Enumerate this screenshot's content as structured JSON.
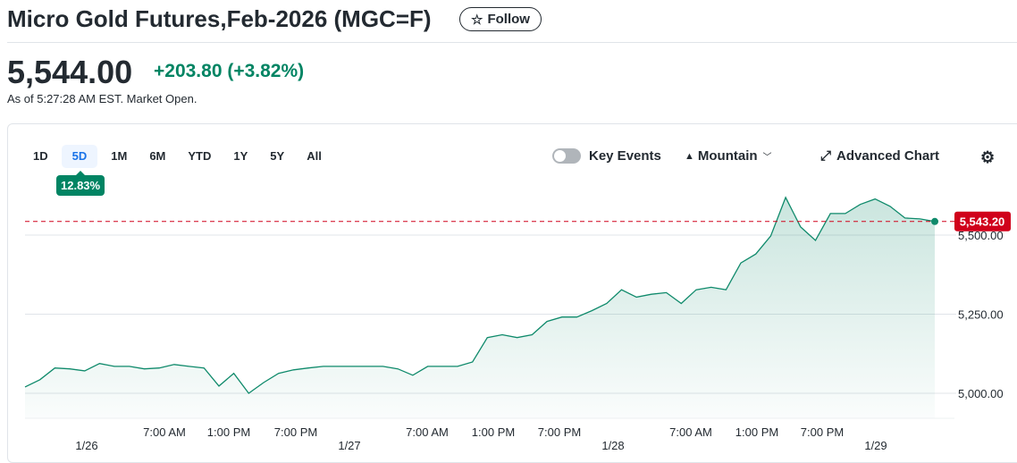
{
  "header": {
    "title": "Micro Gold Futures,Feb-2026 (MGC=F)",
    "follow_label": "Follow",
    "follow_icon": "star-icon"
  },
  "quote": {
    "price": "5,544.00",
    "change": "+203.80",
    "change_pct": "(+3.82%)",
    "as_of": "As of 5:27:28 AM EST. Market Open.",
    "up_color": "#008463"
  },
  "toolbar": {
    "ranges": [
      "1D",
      "5D",
      "1M",
      "6M",
      "YTD",
      "1Y",
      "5Y",
      "All"
    ],
    "selected_range": "5D",
    "range_change": "12.83%",
    "key_events_label": "Key Events",
    "key_events_on": false,
    "chart_type_label": "Mountain",
    "advanced_chart_label": "Advanced Chart"
  },
  "chart_data": {
    "type": "area",
    "line_color": "#0f8a6b",
    "ylim": [
      4960,
      5660
    ],
    "y_ticks": [
      {
        "value": 5000,
        "label": "5,000.00"
      },
      {
        "value": 5250,
        "label": "5,250.00"
      },
      {
        "value": 5500,
        "label": "5,500.00"
      }
    ],
    "x_ticks": [
      "1/26",
      "7:00 AM",
      "1:00 PM",
      "7:00 PM",
      "1/27",
      "7:00 AM",
      "1:00 PM",
      "7:00 PM",
      "1/28",
      "7:00 AM",
      "1:00 PM",
      "7:00 PM",
      "1/29"
    ],
    "reference_line": {
      "value": 5543.2,
      "label": "5,543.20",
      "color": "#d0021b"
    },
    "values": [
      5020,
      5043,
      5080,
      5077,
      5071,
      5094,
      5085,
      5085,
      5077,
      5080,
      5091,
      5085,
      5080,
      5023,
      5063,
      5000,
      5034,
      5063,
      5074,
      5080,
      5085,
      5085,
      5085,
      5085,
      5085,
      5077,
      5057,
      5085,
      5085,
      5085,
      5099,
      5176,
      5185,
      5176,
      5185,
      5227,
      5241,
      5241,
      5261,
      5284,
      5327,
      5304,
      5313,
      5318,
      5284,
      5327,
      5335,
      5327,
      5412,
      5440,
      5497,
      5619,
      5526,
      5483,
      5568,
      5568,
      5597,
      5614,
      5591,
      5554,
      5551,
      5543
    ]
  }
}
